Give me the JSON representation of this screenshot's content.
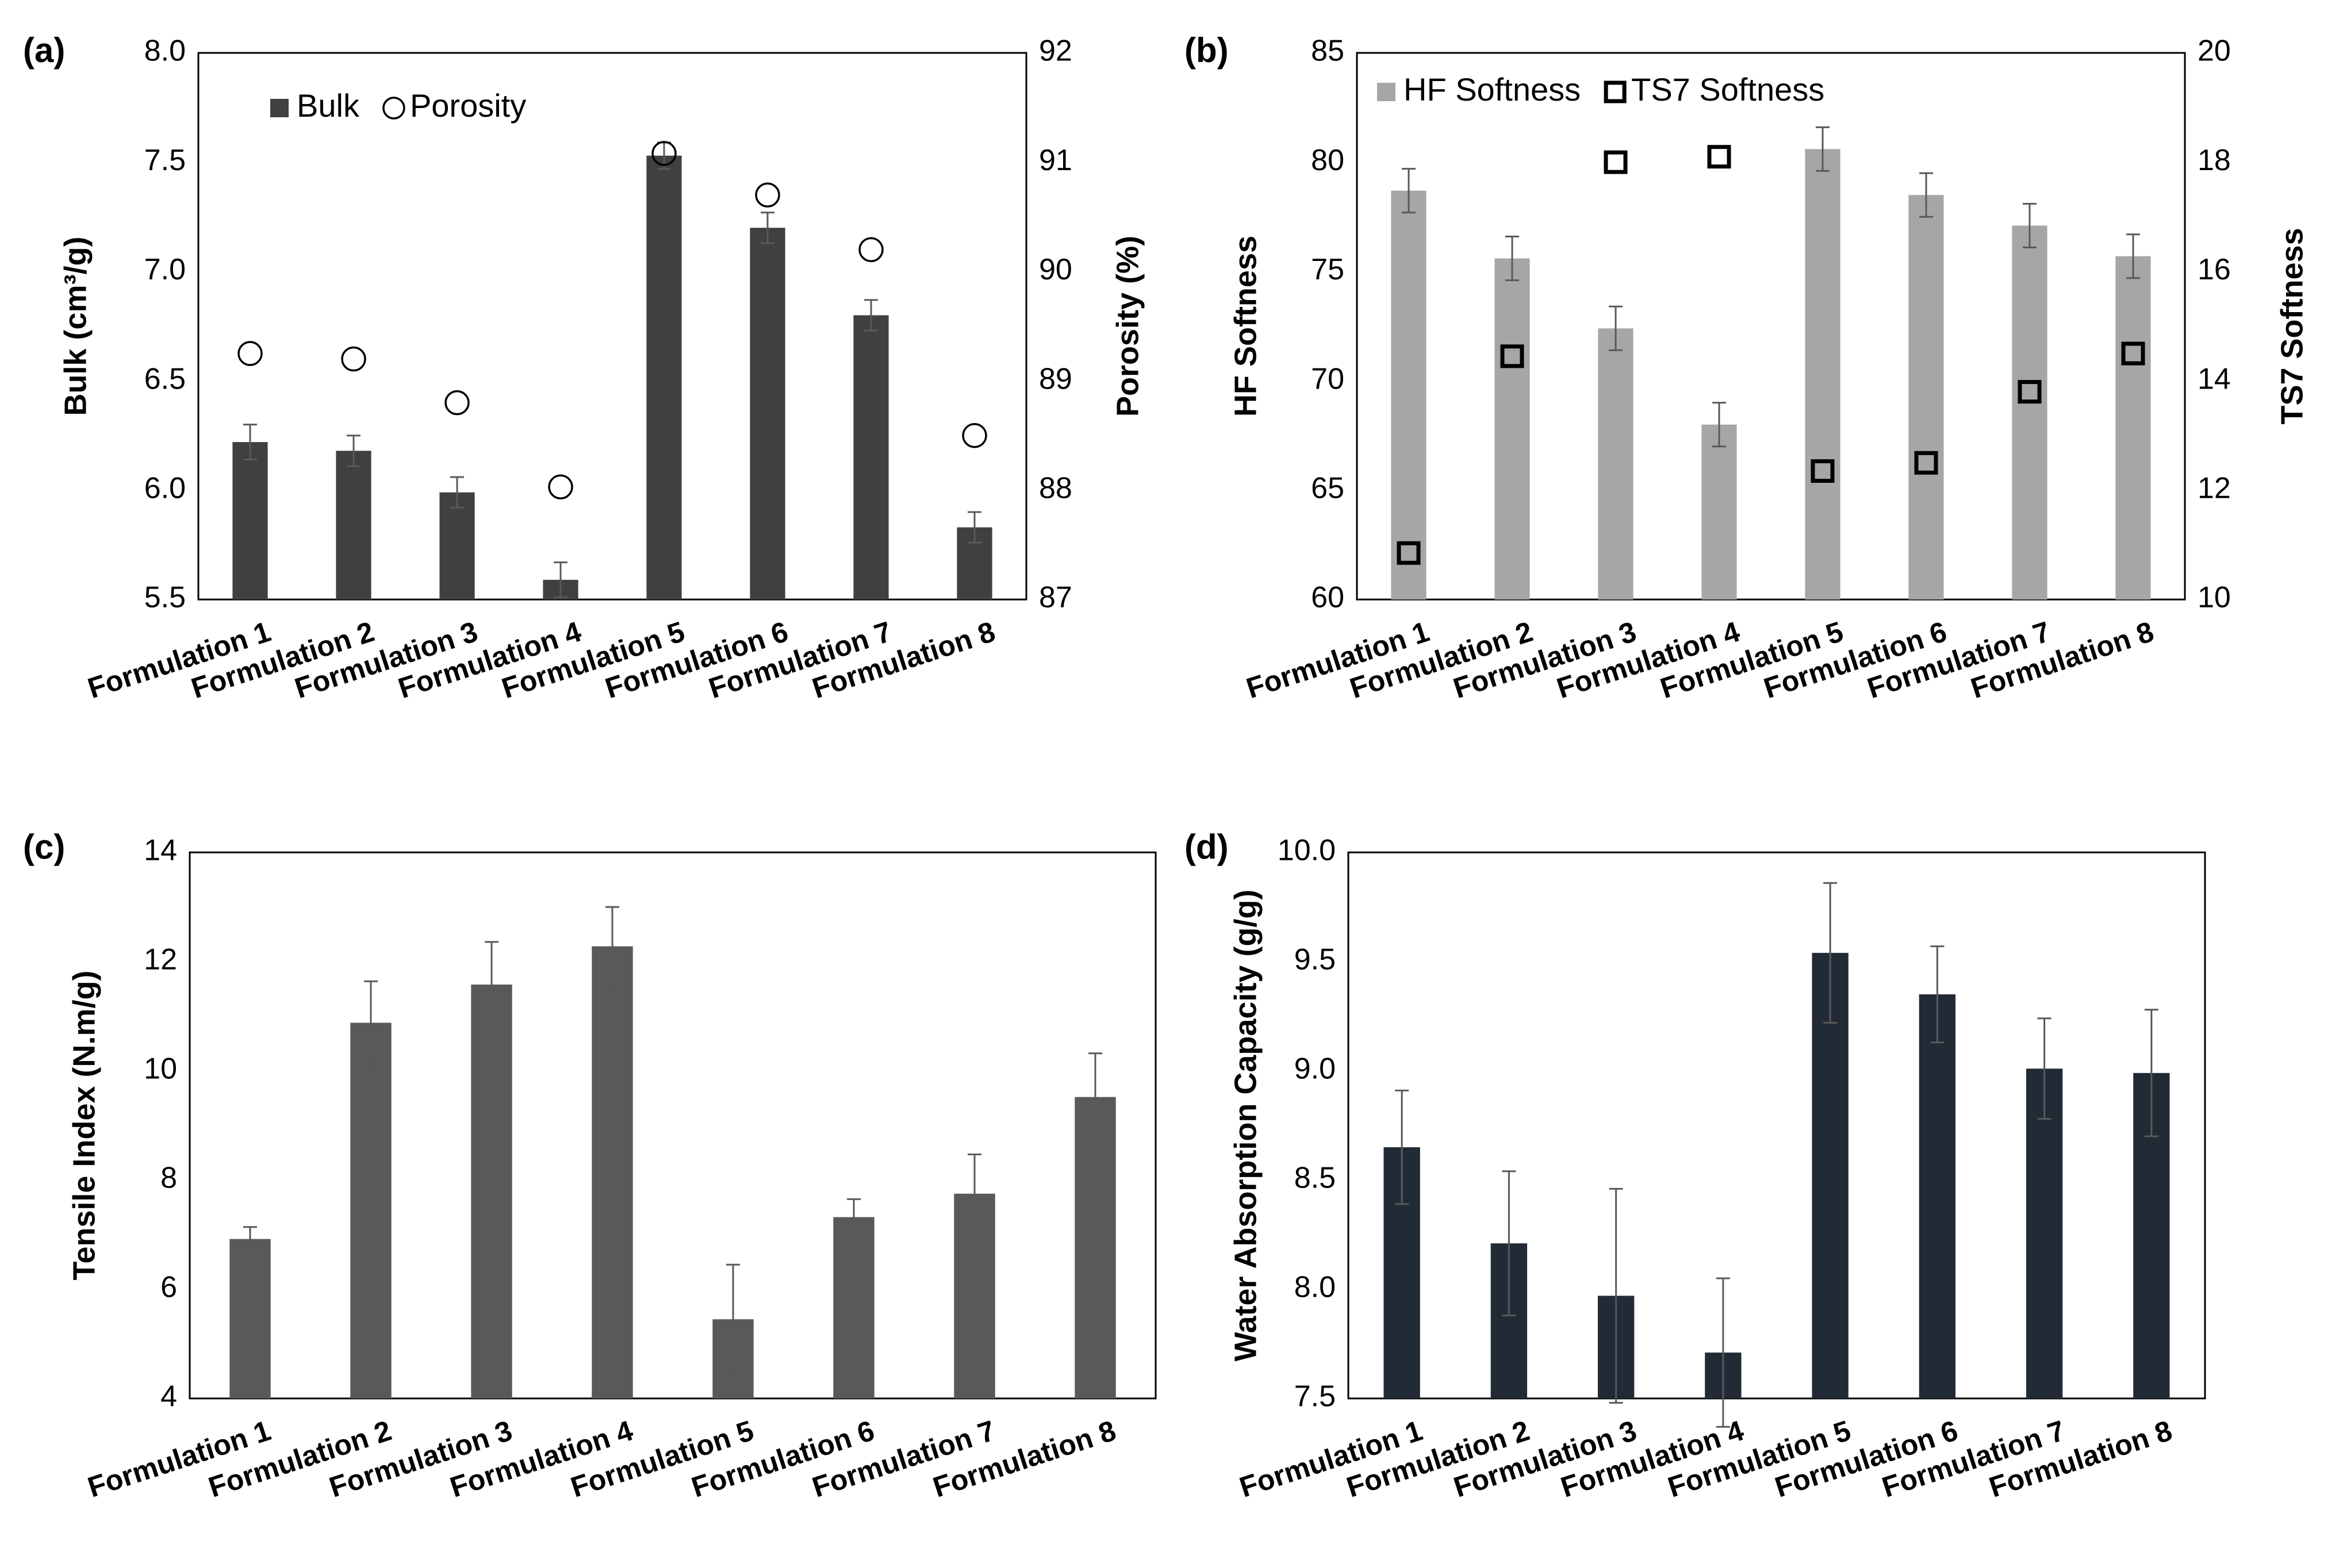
{
  "chart_data": [
    {
      "panel": "(a)",
      "type": "bar",
      "categories": [
        "Formulation 1",
        "Formulation 2",
        "Formulation 3",
        "Formulation 4",
        "Formulation 5",
        "Formulation 6",
        "Formulation 7",
        "Formulation 8"
      ],
      "ylabel": "Bulk (cm³/g)",
      "ylabel2": "Porosity (%)",
      "ylim": [
        5.5,
        8.0
      ],
      "yticks": [
        "5.5",
        "6.0",
        "6.5",
        "7.0",
        "7.5",
        "8.0"
      ],
      "ylim2": [
        87,
        92
      ],
      "yticks2": [
        "87",
        "88",
        "89",
        "90",
        "91",
        "92"
      ],
      "legend": [
        "Bulk",
        "Porosity"
      ],
      "colors": {
        "bar": "#404040",
        "marker": "#000000"
      },
      "series": [
        {
          "name": "Bulk",
          "kind": "bar",
          "axis": "left",
          "values": [
            6.22,
            6.18,
            5.99,
            5.59,
            7.53,
            7.2,
            6.8,
            5.83
          ],
          "errors": [
            0.08,
            0.07,
            0.07,
            0.08,
            0.06,
            0.07,
            0.07,
            0.07
          ]
        },
        {
          "name": "Porosity",
          "kind": "circle",
          "axis": "right",
          "values": [
            89.25,
            89.2,
            88.8,
            88.03,
            91.08,
            90.7,
            90.2,
            88.5
          ]
        }
      ]
    },
    {
      "panel": "(b)",
      "type": "bar",
      "categories": [
        "Formulation 1",
        "Formulation 2",
        "Formulation 3",
        "Formulation 4",
        "Formulation 5",
        "Formulation 6",
        "Formulation 7",
        "Formulation 8"
      ],
      "ylabel": "HF Softness",
      "ylabel2": "TS7 Softness",
      "ylim": [
        60,
        85
      ],
      "yticks": [
        "60",
        "65",
        "70",
        "75",
        "80",
        "85"
      ],
      "ylim2": [
        10,
        20
      ],
      "yticks2": [
        "10",
        "12",
        "14",
        "16",
        "18",
        "20"
      ],
      "legend": [
        "HF Softness",
        "TS7 Softness"
      ],
      "colors": {
        "bar": "#a6a6a6",
        "marker": "#000000"
      },
      "series": [
        {
          "name": "HF Softness",
          "kind": "bar",
          "axis": "left",
          "values": [
            78.7,
            75.6,
            72.4,
            68.0,
            80.6,
            78.5,
            77.1,
            75.7
          ],
          "errors": [
            1.0,
            1.0,
            1.0,
            1.0,
            1.0,
            1.0,
            1.0,
            1.0
          ]
        },
        {
          "name": "TS7 Softness",
          "kind": "square",
          "axis": "right",
          "values": [
            10.85,
            14.45,
            18.0,
            18.1,
            12.35,
            12.5,
            13.8,
            14.5
          ]
        }
      ]
    },
    {
      "panel": "(c)",
      "type": "bar",
      "categories": [
        "Formulation 1",
        "Formulation 2",
        "Formulation 3",
        "Formulation 4",
        "Formulation 5",
        "Formulation 6",
        "Formulation 7",
        "Formulation 8"
      ],
      "ylabel": "Tensile Index (N.m/g)",
      "ylim": [
        4,
        14
      ],
      "yticks": [
        "4",
        "6",
        "8",
        "10",
        "12",
        "14"
      ],
      "colors": {
        "bar": "#595959"
      },
      "series": [
        {
          "name": "Tensile Index",
          "kind": "bar",
          "axis": "left",
          "values": [
            6.92,
            10.88,
            11.58,
            12.28,
            5.45,
            7.32,
            7.75,
            9.52
          ],
          "errors": [
            0.22,
            0.76,
            0.78,
            0.72,
            1.0,
            0.33,
            0.72,
            0.8
          ]
        }
      ]
    },
    {
      "panel": "(d)",
      "type": "bar",
      "categories": [
        "Formulation 1",
        "Formulation 2",
        "Formulation 3",
        "Formulation 4",
        "Formulation 5",
        "Formulation 6",
        "Formulation 7",
        "Formulation 8"
      ],
      "ylabel": "Water Absorption Capacity (g/g)",
      "ylim": [
        7.5,
        10.0
      ],
      "yticks": [
        "7.5",
        "8.0",
        "8.5",
        "9.0",
        "9.5",
        "10.0"
      ],
      "colors": {
        "bar": "#222a35"
      },
      "series": [
        {
          "name": "Water Absorption Capacity",
          "kind": "bar",
          "axis": "left",
          "values": [
            8.65,
            8.21,
            7.97,
            7.71,
            9.54,
            9.35,
            9.01,
            8.99
          ],
          "errors": [
            0.26,
            0.33,
            0.49,
            0.34,
            0.32,
            0.22,
            0.23,
            0.29
          ]
        }
      ]
    }
  ]
}
